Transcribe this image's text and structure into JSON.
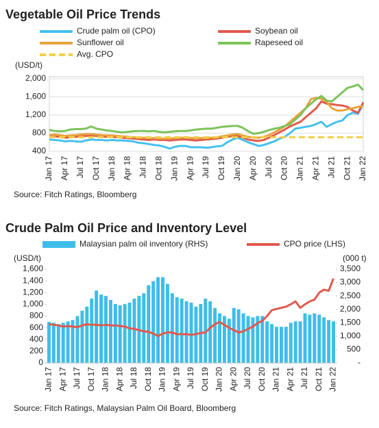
{
  "chart_data": [
    {
      "type": "line",
      "title": "Vegetable Oil Price Trends",
      "y_label": "(USD/t)",
      "source": "Source: Fitch Ratings, Bloomberg",
      "categories": [
        "Jan 17",
        null,
        null,
        "Apr 17",
        null,
        null,
        "Jul 17",
        null,
        null,
        "Oct 17",
        null,
        null,
        "Jan 18",
        null,
        null,
        "Apr 18",
        null,
        null,
        "Jul 18",
        null,
        null,
        "Oct 18",
        null,
        null,
        "Jan 19",
        null,
        null,
        "Apr 19",
        null,
        null,
        "Jul 19",
        null,
        null,
        "Oct 19",
        null,
        null,
        "Jan 20",
        null,
        null,
        "Apr 20",
        null,
        null,
        "Jul 20",
        null,
        null,
        "Oct 20",
        null,
        null,
        "Jan 21",
        null,
        null,
        "Apr 21",
        null,
        null,
        "Jul 21",
        null,
        null,
        "Oct 21",
        null,
        null,
        "Jan 22"
      ],
      "ylim": [
        400,
        2000
      ],
      "yticks": [
        400,
        800,
        {
          "value": 1200,
          "label": "1,200"
        },
        {
          "value": 1600,
          "label": "1,600"
        },
        {
          "value": 2000,
          "label": "2,000"
        }
      ],
      "grid": true,
      "series": [
        {
          "name": "Crude palm oil (CPO)",
          "color": "#45c1ef",
          "values": [
            660,
            650,
            640,
            620,
            630,
            620,
            610,
            640,
            660,
            650,
            650,
            640,
            650,
            640,
            640,
            630,
            620,
            590,
            580,
            560,
            540,
            530,
            500,
            460,
            500,
            520,
            520,
            490,
            490,
            490,
            480,
            490,
            510,
            520,
            600,
            660,
            700,
            650,
            600,
            560,
            520,
            540,
            580,
            620,
            680,
            720,
            800,
            900,
            920,
            940,
            960,
            1000,
            1050,
            940,
            1000,
            1050,
            1080,
            1200,
            1250,
            1230,
            1440
          ]
        },
        {
          "name": "Soybean oil",
          "color": "#e05a4e",
          "values": [
            720,
            730,
            720,
            700,
            710,
            720,
            730,
            740,
            750,
            740,
            730,
            720,
            720,
            710,
            700,
            690,
            680,
            670,
            660,
            650,
            660,
            650,
            650,
            640,
            650,
            660,
            660,
            650,
            640,
            650,
            660,
            670,
            680,
            700,
            720,
            740,
            740,
            700,
            660,
            640,
            630,
            650,
            700,
            760,
            820,
            880,
            950,
            1000,
            1050,
            1150,
            1250,
            1350,
            1500,
            1450,
            1440,
            1420,
            1410,
            1380,
            1300,
            1250,
            1480
          ]
        },
        {
          "name": "Sunflower oil",
          "color": "#e8a33d",
          "values": [
            760,
            770,
            760,
            740,
            750,
            760,
            770,
            780,
            780,
            770,
            760,
            750,
            750,
            740,
            730,
            720,
            710,
            700,
            700,
            690,
            690,
            680,
            680,
            680,
            690,
            700,
            700,
            690,
            690,
            690,
            690,
            700,
            710,
            730,
            750,
            770,
            780,
            750,
            720,
            700,
            700,
            720,
            760,
            820,
            880,
            950,
            1050,
            1150,
            1250,
            1350,
            1550,
            1580,
            1560,
            1500,
            1350,
            1300,
            1300,
            1330,
            1350,
            1380,
            1400
          ]
        },
        {
          "name": "Rapeseed oil",
          "color": "#7cc35a",
          "values": [
            870,
            850,
            840,
            850,
            880,
            890,
            890,
            900,
            950,
            900,
            880,
            860,
            850,
            830,
            820,
            830,
            840,
            850,
            850,
            840,
            850,
            830,
            820,
            830,
            840,
            850,
            850,
            860,
            880,
            890,
            900,
            900,
            920,
            940,
            950,
            960,
            960,
            920,
            840,
            790,
            800,
            830,
            870,
            900,
            920,
            960,
            1000,
            1100,
            1200,
            1350,
            1450,
            1550,
            1620,
            1520,
            1500,
            1600,
            1700,
            1800,
            1830,
            1870,
            1750
          ]
        },
        {
          "name": "Avg. CPO",
          "color": "#f2cf4a",
          "value": 712,
          "style": "dashed"
        }
      ]
    },
    {
      "type": "combo",
      "title": "Crude Palm Oil Price and Inventory Level",
      "y_label": "(USD/t)",
      "y2_label": "(000 t)",
      "source": "Source: Fitch Ratings, Malaysian Palm Oil Board, Bloomberg",
      "categories": [
        "Jan 17",
        null,
        null,
        "Apr 17",
        null,
        null,
        "Jul 17",
        null,
        null,
        "Oct 17",
        null,
        null,
        "Jan 18",
        null,
        null,
        "Apr 18",
        null,
        null,
        "Jul 18",
        null,
        null,
        "Oct 18",
        null,
        null,
        "Jan 19",
        null,
        null,
        "Apr 19",
        null,
        null,
        "Jul 19",
        null,
        null,
        "Oct 19",
        null,
        null,
        "Jan 20",
        null,
        null,
        "Apr 20",
        null,
        null,
        "Jul 20",
        null,
        null,
        "Oct 20",
        null,
        null,
        "Jan 21",
        null,
        null,
        "Apr 21",
        null,
        null,
        "Jul 21",
        null,
        null,
        "Oct 21",
        null,
        null,
        "Jan 22"
      ],
      "ylim": [
        0,
        1600
      ],
      "yticks": [
        0,
        200,
        400,
        600,
        800,
        {
          "value": 1000,
          "label": "1,000"
        },
        {
          "value": 1200,
          "label": "1,200"
        },
        {
          "value": 1400,
          "label": "1,400"
        },
        {
          "value": 1600,
          "label": "1,600"
        }
      ],
      "y2lim": [
        0,
        3500
      ],
      "y2ticks": [
        {
          "value": 0,
          "label": "-"
        },
        500,
        {
          "value": 1000,
          "label": "1,000"
        },
        {
          "value": 1500,
          "label": "1,500"
        },
        {
          "value": 2000,
          "label": "2,000"
        },
        {
          "value": 2500,
          "label": "2,500"
        },
        {
          "value": 3000,
          "label": "3,000"
        },
        {
          "value": 3500,
          "label": "3,500"
        }
      ],
      "grid": false,
      "series": [
        {
          "name": "Malaysian palm oil inventory (RHS)",
          "color": "#3fbde9",
          "kind": "bar",
          "axis": "y2",
          "values": [
            1530,
            1500,
            1450,
            1500,
            1550,
            1600,
            1750,
            1950,
            2100,
            2400,
            2700,
            2550,
            2500,
            2350,
            2200,
            2150,
            2200,
            2250,
            2400,
            2500,
            2600,
            2900,
            3050,
            3200,
            3200,
            2950,
            2600,
            2450,
            2400,
            2300,
            2250,
            2100,
            2200,
            2400,
            2300,
            2050,
            1850,
            1750,
            1650,
            2050,
            2000,
            1850,
            1750,
            1700,
            1750,
            1750,
            1550,
            1450,
            1350,
            1350,
            1350,
            1500,
            1550,
            1550,
            1850,
            1800,
            1850,
            1800,
            1700,
            1600,
            1550
          ]
        },
        {
          "name": "CPO price (LHS)",
          "color": "#e05a4e",
          "kind": "line",
          "values": [
            660,
            650,
            640,
            620,
            630,
            620,
            610,
            640,
            660,
            650,
            650,
            640,
            650,
            640,
            640,
            630,
            620,
            590,
            580,
            560,
            540,
            530,
            500,
            460,
            500,
            520,
            520,
            490,
            490,
            490,
            480,
            490,
            510,
            520,
            600,
            660,
            700,
            650,
            600,
            560,
            520,
            540,
            580,
            620,
            680,
            720,
            800,
            900,
            920,
            940,
            960,
            1000,
            1050,
            940,
            1000,
            1050,
            1080,
            1200,
            1250,
            1230,
            1440
          ]
        }
      ]
    }
  ]
}
